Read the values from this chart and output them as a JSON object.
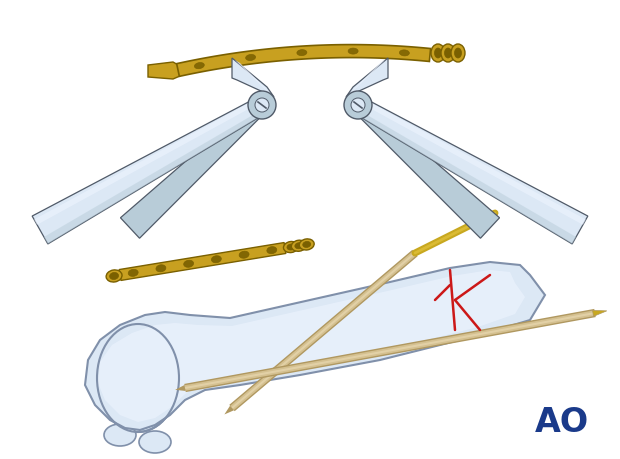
{
  "background_color": "#ffffff",
  "ao_logo_color": "#1a3a8a",
  "ao_text": "AO",
  "plate_color": "#c8a020",
  "plate_dark": "#7a6000",
  "plate_light": "#e8c840",
  "steel_light": "#dce8f5",
  "steel_mid": "#b8ccd8",
  "steel_dark": "#8090a8",
  "steel_outline": "#505a68",
  "steel_highlight": "#eef4ff",
  "bone_fill": "#e8eef8",
  "bone_light": "#f0f5ff",
  "bone_mid": "#c8d4e4",
  "bone_outline": "#8090a8",
  "fracture_color": "#cc1818",
  "wire_color": "#c8a820",
  "wire_light": "#e8c840",
  "fig_width": 6.2,
  "fig_height": 4.59,
  "dpi": 100
}
